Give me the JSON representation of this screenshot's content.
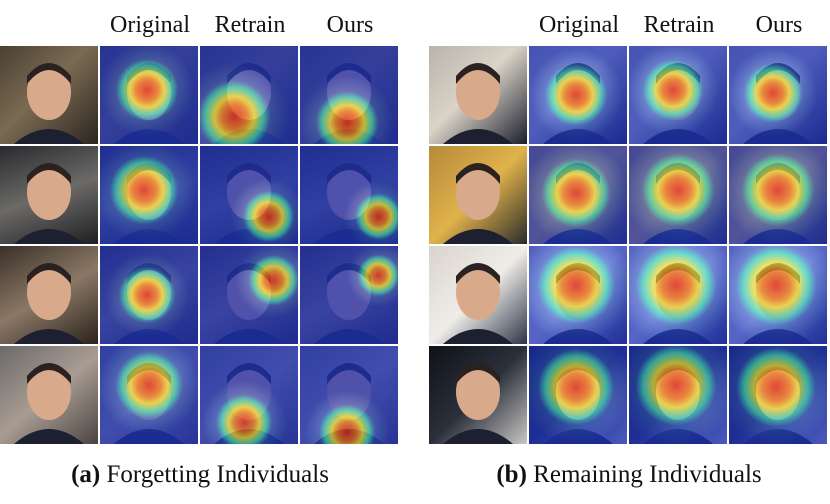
{
  "columns": [
    "Original",
    "Retrain",
    "Ours"
  ],
  "panel_a": {
    "caption_tag": "(a)",
    "caption_text": "Forgetting Individuals"
  },
  "panel_b": {
    "caption_tag": "(b)",
    "caption_text": "Remaining Individuals"
  },
  "colors": {
    "heat_low": "#1a2fb8",
    "heat_mid": "#39d6c4",
    "heat_warm": "#f0e23a",
    "heat_high": "#e2201b"
  }
}
